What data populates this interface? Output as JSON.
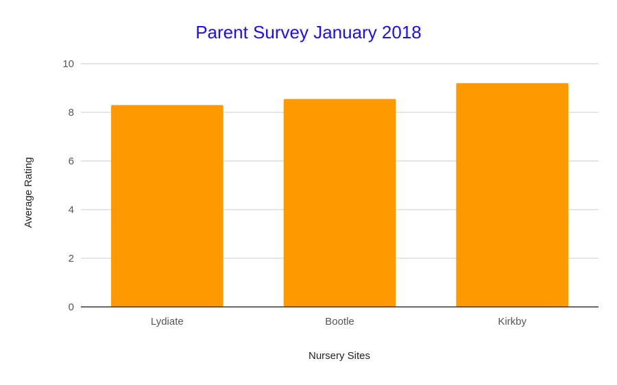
{
  "chart_data": {
    "type": "bar",
    "title": "Parent Survey January 2018",
    "xlabel": "Nursery Sites",
    "ylabel": "Average Rating",
    "categories": [
      "Lydiate",
      "Bootle",
      "Kirkby"
    ],
    "values": [
      8.3,
      8.55,
      9.2
    ],
    "ylim": [
      0,
      10
    ],
    "yticks": [
      0,
      2,
      4,
      6,
      8,
      10
    ],
    "grid": true,
    "legend": "none",
    "colors": {
      "bar": "#ff9900",
      "title": "#1a0dff",
      "gridline": "#cccccc",
      "axis": "#333333",
      "tick_label": "#555555",
      "axis_label": "#222222"
    }
  }
}
